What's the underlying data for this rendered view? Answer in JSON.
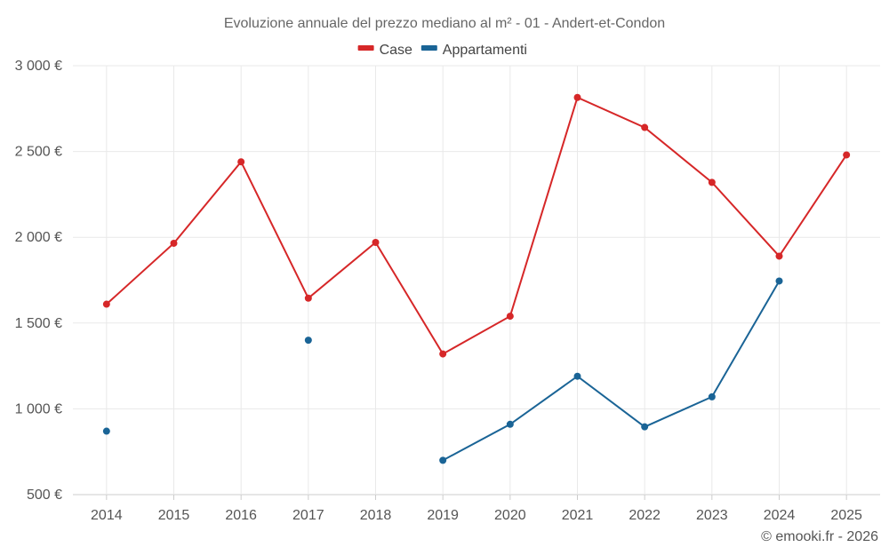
{
  "chart_data": {
    "type": "line",
    "title": "Evoluzione annuale del prezzo mediano al m² - 01 - Andert-et-Condon",
    "categories": [
      "2014",
      "2015",
      "2016",
      "2017",
      "2018",
      "2019",
      "2020",
      "2021",
      "2022",
      "2023",
      "2024",
      "2025"
    ],
    "ylim": [
      500,
      3000
    ],
    "yticks": [
      500,
      1000,
      1500,
      2000,
      2500,
      3000
    ],
    "ytick_labels": [
      "500 €",
      "1 000 €",
      "1 500 €",
      "2 000 €",
      "2 500 €",
      "3 000 €"
    ],
    "xlabel": "",
    "ylabel": "",
    "grid": true,
    "legend_position": "top-center",
    "series": [
      {
        "name": "Case",
        "color": "#d62728",
        "values": [
          1610,
          1965,
          2440,
          1645,
          1970,
          1320,
          1540,
          2815,
          2640,
          2320,
          1890,
          2480
        ]
      },
      {
        "name": "Appartamenti",
        "color": "#1a6496",
        "values": [
          870,
          null,
          null,
          1400,
          null,
          700,
          910,
          1190,
          895,
          1070,
          1745,
          null
        ]
      }
    ]
  },
  "credit": "© emooki.fr - 2026"
}
